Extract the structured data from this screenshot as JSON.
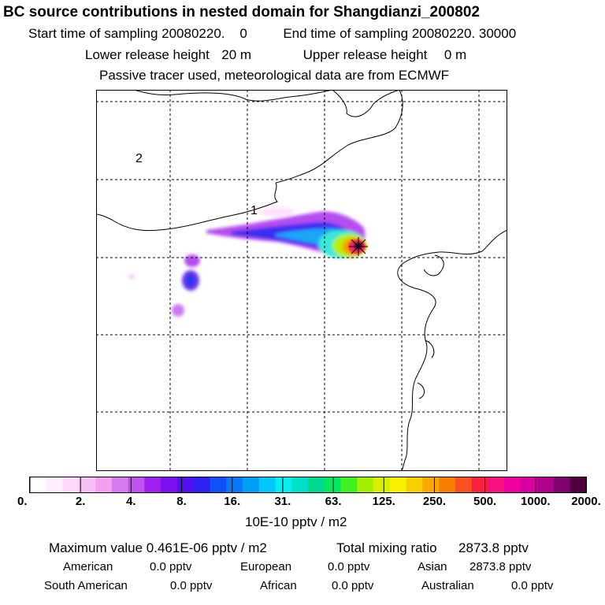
{
  "header": {
    "title": "BC  source contributions in nested domain for Shangdianzi_200802",
    "start_label": "Start time of sampling",
    "start_value": "20080220.    0",
    "end_label": "End time of sampling",
    "end_value": "20080220. 30000",
    "lower_label": "Lower release height",
    "lower_value": "20 m",
    "upper_label": "Upper release height",
    "upper_value": "0 m",
    "tracer_note": "Passive tracer used, meteorological data are from ECMWF"
  },
  "map": {
    "region_labels": [
      "1",
      "2"
    ],
    "receptor": "Shangdianzi"
  },
  "colorbar": {
    "unit": "10E-10 pptv / m2",
    "tick_labels": [
      "0.",
      "2.",
      "4.",
      "8.",
      "16.",
      "31.",
      "63.",
      "125.",
      "250.",
      "500.",
      "1000.",
      "2000."
    ],
    "tick_values": [
      0,
      2,
      4,
      8,
      16,
      31,
      63,
      125,
      250,
      500,
      1000,
      2000
    ],
    "colors": [
      "#ffffff",
      "#ffeefe",
      "#ffd8fc",
      "#f8bef8",
      "#f3a0f0",
      "#d67af0",
      "#c050f0",
      "#a020f0",
      "#7a10f0",
      "#5010f0",
      "#3020f0",
      "#1050f8",
      "#0a78f8",
      "#00a0f8",
      "#00c8f8",
      "#00f0f0",
      "#00e0c8",
      "#00d890",
      "#00e860",
      "#40f020",
      "#a0f000",
      "#d8f000",
      "#f8f000",
      "#f8d000",
      "#f8a800",
      "#f88000",
      "#f85020",
      "#f82040",
      "#f81080",
      "#f000a0",
      "#d800a0",
      "#b00090",
      "#800070",
      "#500040"
    ]
  },
  "stats": {
    "max_label": "Maximum value",
    "max_value": "0.461E-06 pptv / m2",
    "total_label": "Total mixing ratio",
    "total_value": "2873.8 pptv",
    "regions": [
      {
        "name": "American",
        "value": "0.0 pptv"
      },
      {
        "name": "European",
        "value": "0.0 pptv"
      },
      {
        "name": "Asian",
        "value": "2873.8 pptv"
      },
      {
        "name": "South American",
        "value": "0.0 pptv"
      },
      {
        "name": "African",
        "value": "0.0 pptv"
      },
      {
        "name": "Australian",
        "value": "0.0 pptv"
      }
    ]
  }
}
